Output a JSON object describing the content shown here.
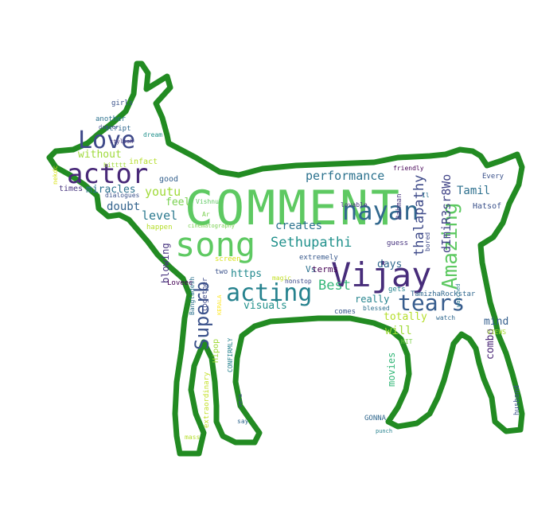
{
  "wordcloud": {
    "outline_color": "#228b22",
    "words": [
      {
        "text": "COMMENT",
        "color": "#5ec962"
      },
      {
        "text": "song",
        "color": "#5ec962"
      },
      {
        "text": "Vijay",
        "color": "#472c7a"
      },
      {
        "text": "actor",
        "color": "#482878"
      },
      {
        "text": "Love",
        "color": "#3e4989"
      },
      {
        "text": "nayan",
        "color": "#31688e"
      },
      {
        "text": "Amazing",
        "color": "#5ec962"
      },
      {
        "text": "tears",
        "color": "#365c8d"
      },
      {
        "text": "acting",
        "color": "#26828e"
      },
      {
        "text": "Superb",
        "color": "#3b528b"
      },
      {
        "text": "Sethupathi",
        "color": "#21918c"
      },
      {
        "text": "thalapathy",
        "color": "#3e4a89"
      },
      {
        "text": "Best",
        "color": "#35b779"
      },
      {
        "text": "dImiR3sr8Wo",
        "color": "#414487"
      },
      {
        "text": "performance",
        "color": "#2c728e"
      },
      {
        "text": "level",
        "color": "#2a788e"
      },
      {
        "text": "feel",
        "color": "#7ad151"
      },
      {
        "text": "youtu",
        "color": "#a0da39"
      },
      {
        "text": "doubt",
        "color": "#33638d"
      },
      {
        "text": "miracles",
        "color": "#2c728e"
      },
      {
        "text": "without",
        "color": "#9fda3a"
      },
      {
        "text": "infact",
        "color": "#b5de2b"
      },
      {
        "text": "good",
        "color": "#34608d"
      },
      {
        "text": "times",
        "color": "#46337e"
      },
      {
        "text": "dialogues",
        "color": "#3b528b"
      },
      {
        "text": "Tamil",
        "color": "#2d708e"
      },
      {
        "text": "creates",
        "color": "#2c728e"
      },
      {
        "text": "days",
        "color": "#31688e"
      },
      {
        "text": "https",
        "color": "#23898e"
      },
      {
        "text": "Vs",
        "color": "#2c728e"
      },
      {
        "text": "terms",
        "color": "#440154"
      },
      {
        "text": "really",
        "color": "#25848e"
      },
      {
        "text": "totally",
        "color": "#b5de2b"
      },
      {
        "text": "will",
        "color": "#a0da39"
      },
      {
        "text": "visuals",
        "color": "#21918c"
      },
      {
        "text": "mind",
        "color": "#355f8d"
      },
      {
        "text": "combo",
        "color": "#482475"
      },
      {
        "text": "movies",
        "color": "#35b779"
      },
      {
        "text": "blowing",
        "color": "#46327e"
      },
      {
        "text": "Loveee",
        "color": "#440154"
      },
      {
        "text": "screen",
        "color": "#d8e219"
      },
      {
        "text": "magic",
        "color": "#c2df23"
      },
      {
        "text": "nonstop",
        "color": "#3e4989"
      },
      {
        "text": "extremely",
        "color": "#38598c"
      },
      {
        "text": "comes",
        "color": "#38588c"
      },
      {
        "text": "blessed",
        "color": "#2d708e"
      },
      {
        "text": "watch",
        "color": "#31688e"
      },
      {
        "text": "VIEWS",
        "color": "#a5db36"
      },
      {
        "text": "HIT",
        "color": "#7fd34e"
      },
      {
        "text": "TamizhaRockstar",
        "color": "#31688e"
      },
      {
        "text": "gets",
        "color": "#26828e"
      },
      {
        "text": "watched",
        "color": "#2a788e"
      },
      {
        "text": "bored",
        "color": "#3e4989"
      },
      {
        "text": "guess",
        "color": "#46327e"
      },
      {
        "text": "Hatsof",
        "color": "#3b528b"
      },
      {
        "text": "Every",
        "color": "#3b528b"
      },
      {
        "text": "Rahman",
        "color": "#46337e"
      },
      {
        "text": "Il",
        "color": "#2c728e"
      },
      {
        "text": "lovable",
        "color": "#46327e"
      },
      {
        "text": "friendly",
        "color": "#440154"
      },
      {
        "text": "Vishnu",
        "color": "#5ec962"
      },
      {
        "text": "Ar",
        "color": "#7ad151"
      },
      {
        "text": "cinematography",
        "color": "#7ad151"
      },
      {
        "text": "happen",
        "color": "#b5de2b"
      },
      {
        "text": "two",
        "color": "#3b528b"
      },
      {
        "text": "together",
        "color": "#3e4a89"
      },
      {
        "text": "Bangladesh",
        "color": "#2c728e"
      },
      {
        "text": "KERALA",
        "color": "#fde725"
      },
      {
        "text": "Hipop",
        "color": "#a0da39"
      },
      {
        "text": "CONFIRMLY",
        "color": "#26828e"
      },
      {
        "text": "extraordinary",
        "color": "#c2df23"
      },
      {
        "text": "mass",
        "color": "#b5de2b"
      },
      {
        "text": "say",
        "color": "#31688e"
      },
      {
        "text": "vera",
        "color": "#3e4989"
      },
      {
        "text": "GONNA",
        "color": "#31688e"
      },
      {
        "text": "punch",
        "color": "#26828e"
      },
      {
        "text": "husband",
        "color": "#3b528b"
      },
      {
        "text": "girls",
        "color": "#3b528b"
      },
      {
        "text": "another",
        "color": "#2c728e"
      },
      {
        "text": "script",
        "color": "#31688e"
      },
      {
        "text": "dancer",
        "color": "#3e4989"
      },
      {
        "text": "dream",
        "color": "#21918c"
      },
      {
        "text": "stylish",
        "color": "#46337e"
      },
      {
        "text": "hitttt",
        "color": "#a0da39"
      },
      {
        "text": "nekdc",
        "color": "#d8e219"
      }
    ]
  }
}
